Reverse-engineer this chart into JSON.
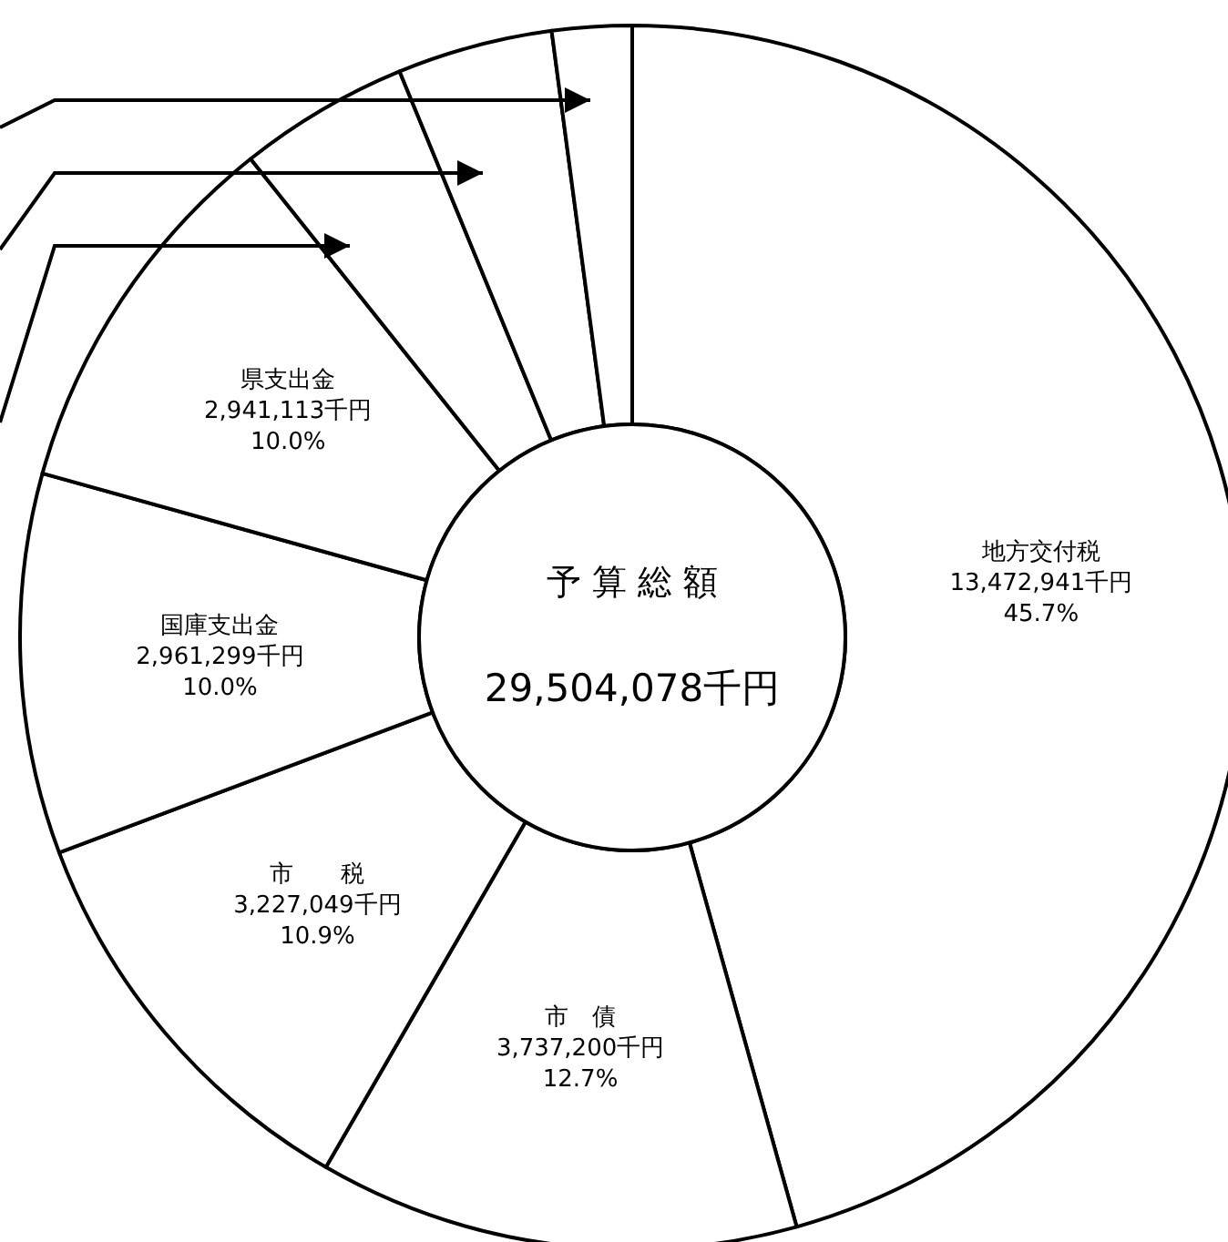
{
  "chart_data": {
    "type": "donut",
    "categories": [
      "地方交付税",
      "市　債",
      "市　　税",
      "国庫支出金",
      "県支出金",
      null,
      null,
      null
    ],
    "values": [
      13472941,
      3737200,
      3227049,
      2961299,
      2941113,
      1330000,
      1210000,
      620000
    ],
    "colors": [
      "#ffffff",
      "#ffffff",
      "#ffffff",
      "#ffffff",
      "#ffffff",
      "#ffffff",
      "#ffffff",
      "#ffffff"
    ],
    "value_labels": [
      "13,472,941千円\n45.7%",
      "3,737,200千円\n12.7%",
      "3,227,049千円\n10.9%",
      "2,961,299千円\n10.0%",
      "2,941,113千円\n10.0%",
      null,
      null,
      null
    ],
    "annotations": [
      "予 算 総 額",
      "29,504,078千円"
    ]
  }
}
